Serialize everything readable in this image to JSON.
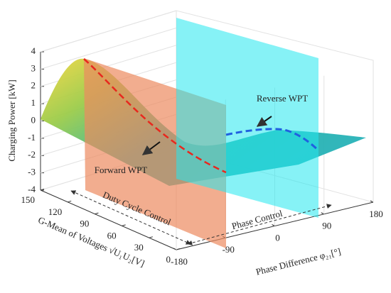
{
  "chart_data": {
    "type": "surface3d",
    "zlabel": "Charging Power [kW]",
    "ylabel": "G-Mean of Voltages √U₁U₂[V]",
    "xlabel": "Phase Difference φ₂₁[°]",
    "xlim": [
      -180,
      180
    ],
    "xticks": [
      -180,
      -90,
      0,
      90,
      180
    ],
    "ylim": [
      0,
      150
    ],
    "yticks": [
      0,
      30,
      60,
      90,
      120,
      150
    ],
    "zlim": [
      -4,
      4
    ],
    "zticks": [
      -4,
      -3,
      -2,
      -1,
      0,
      1,
      2,
      3,
      4
    ],
    "annotations": [
      "Forward WPT",
      "Reverse WPT",
      "Duty Cycle Control",
      "Phase Control"
    ],
    "grid": true
  }
}
